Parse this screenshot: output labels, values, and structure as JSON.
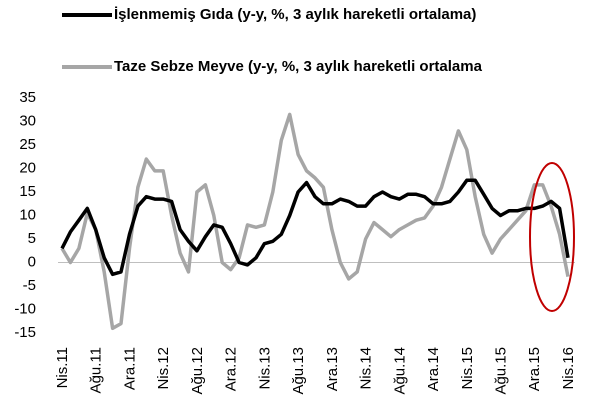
{
  "chart_data": {
    "type": "line",
    "categories": [
      "Nis.11",
      null,
      null,
      null,
      "Ağu.11",
      null,
      null,
      null,
      "Ara.11",
      null,
      null,
      null,
      "Nis.12",
      null,
      null,
      null,
      "Ağu.12",
      null,
      null,
      null,
      "Ara.12",
      null,
      null,
      null,
      "Nis.13",
      null,
      null,
      null,
      "Ağu.13",
      null,
      null,
      null,
      "Ara.13",
      null,
      null,
      null,
      "Nis.14",
      null,
      null,
      null,
      "Ağu.14",
      null,
      null,
      null,
      "Ara.14",
      null,
      null,
      null,
      "Nis.15",
      null,
      null,
      null,
      "Ağu.15",
      null,
      null,
      null,
      "Ara.15",
      null,
      null,
      null,
      "Nis.16"
    ],
    "series": [
      {
        "name": "İşlenmemiş Gıda (y-y, %, 3 aylık hareketli ortalama)",
        "color": "#000000",
        "values": [
          3,
          6.5,
          9,
          11.5,
          7,
          1,
          -2.5,
          -2,
          6,
          12,
          14,
          13.5,
          13.5,
          13,
          7,
          4.5,
          2.5,
          5.5,
          8,
          7.5,
          4,
          0,
          -0.5,
          1,
          4,
          4.5,
          6,
          10,
          15,
          17,
          14,
          12.5,
          12.5,
          13.5,
          13,
          12,
          12,
          14,
          15,
          14,
          13.5,
          14.5,
          14.5,
          14,
          12.5,
          12.5,
          13,
          15,
          17.5,
          17.5,
          14.5,
          11.5,
          10,
          11,
          11,
          11.5,
          11.5,
          12,
          13,
          11.5,
          1
        ]
      },
      {
        "name": "Taze Sebze Meyve (y-y, %, 3 aylık hareketli ortalama",
        "color": "#a6a6a6",
        "values": [
          3,
          0,
          3,
          10.5,
          7,
          -2,
          -14,
          -13,
          3,
          16,
          22,
          19.5,
          19.5,
          10,
          2,
          -2,
          15,
          16.5,
          10,
          0,
          -1.5,
          1,
          8,
          7.5,
          8,
          15,
          26,
          31.5,
          23,
          19.5,
          18,
          16,
          7,
          0,
          -3.5,
          -2,
          5,
          8.5,
          7,
          5.5,
          7,
          8,
          9,
          9.5,
          12,
          16,
          22,
          28,
          24,
          14,
          6,
          2,
          5,
          7,
          9,
          11,
          16.5,
          16.5,
          12,
          6,
          -3
        ]
      }
    ],
    "ylim": [
      -15,
      35
    ],
    "yticks": [
      -15,
      -10,
      -5,
      0,
      5,
      10,
      15,
      20,
      25,
      30,
      35
    ],
    "grid": false
  }
}
